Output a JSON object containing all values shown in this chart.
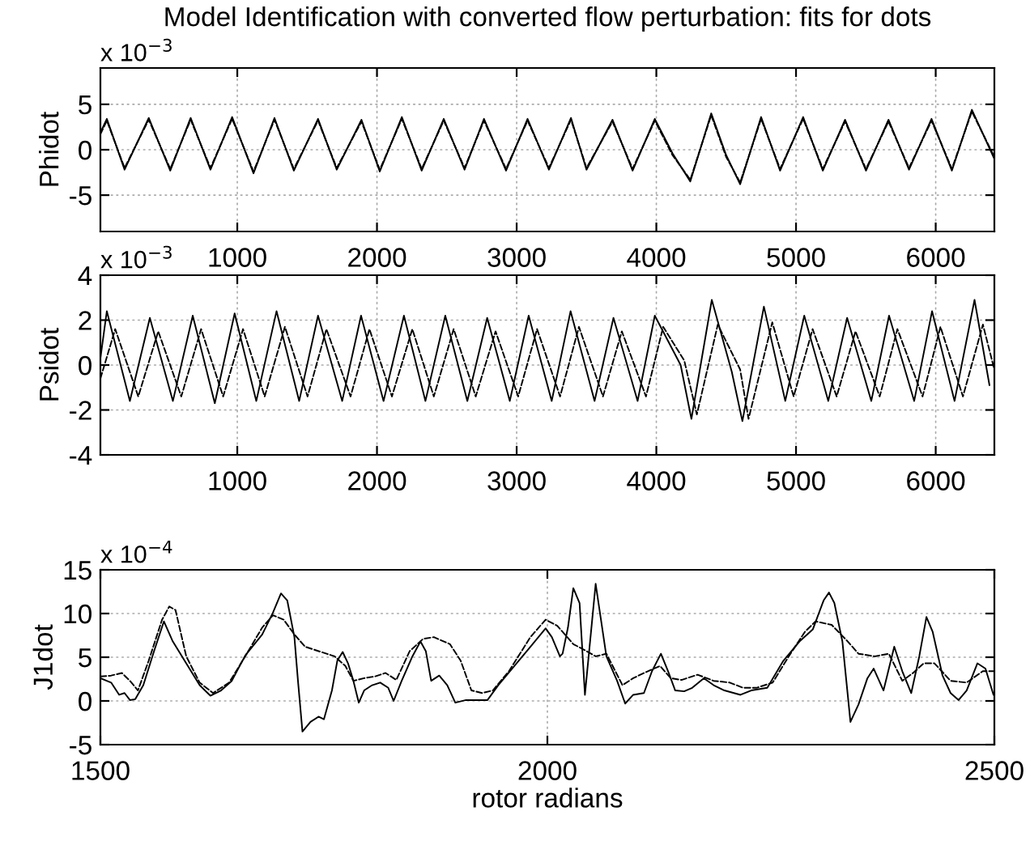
{
  "chart_data": [
    {
      "type": "line",
      "title": "Model Identification with converted flow perturbation: fits for dots",
      "ylabel": "Phidot",
      "annotations": [
        "x 10$^{−3}$"
      ],
      "xlim": [
        20,
        6420
      ],
      "xticks": [
        1000,
        2000,
        3000,
        4000,
        5000,
        6000
      ],
      "ylim": [
        -9,
        9
      ],
      "yticks": [
        -5,
        0,
        5
      ],
      "grid": true,
      "legend": false,
      "series": [
        {
          "color": "#000000",
          "line_style": "solid",
          "x": [
            20,
            66,
            193,
            366,
            520,
            666,
            808,
            963,
            1116,
            1266,
            1405,
            1578,
            1712,
            1889,
            2020,
            2178,
            2320,
            2478,
            2627,
            2766,
            2924,
            3078,
            3231,
            3389,
            3500,
            3686,
            3830,
            3989,
            4116,
            4243,
            4393,
            4500,
            4600,
            4750,
            4886,
            5051,
            5192,
            5351,
            5501,
            5662,
            5809,
            5970,
            6116,
            6259,
            6420
          ],
          "values": [
            1.9,
            3.4,
            -2.2,
            3.5,
            -2.3,
            3.5,
            -2.2,
            3.6,
            -2.6,
            3.5,
            -2.3,
            3.4,
            -2.2,
            3.3,
            -2.4,
            3.6,
            -2.3,
            3.4,
            -2.2,
            3.4,
            -2.3,
            3.4,
            -2.2,
            3.5,
            -2.2,
            3.3,
            -2.3,
            3.4,
            -0.4,
            -3.5,
            4.0,
            -0.6,
            -3.8,
            3.6,
            -2.3,
            3.6,
            -2.3,
            3.3,
            -2.3,
            3.3,
            -2.2,
            3.4,
            -2.3,
            4.4,
            -1.0
          ]
        },
        {
          "color": "#000000",
          "line_style": "dashed",
          "x": [
            20,
            66,
            193,
            366,
            520,
            666,
            808,
            963,
            1116,
            1266,
            1405,
            1578,
            1712,
            1889,
            2020,
            2178,
            2320,
            2478,
            2627,
            2766,
            2924,
            3078,
            3231,
            3389,
            3500,
            3686,
            3830,
            3989,
            4116,
            4243,
            4393,
            4500,
            4600,
            4750,
            4886,
            5051,
            5192,
            5351,
            5501,
            5662,
            5809,
            5970,
            6116,
            6259,
            6420
          ],
          "values": [
            1.7,
            3.2,
            -2.0,
            3.3,
            -2.1,
            3.3,
            -2.0,
            3.4,
            -2.4,
            3.3,
            -2.1,
            3.2,
            -2.0,
            3.1,
            -2.2,
            3.4,
            -2.1,
            3.2,
            -2.0,
            3.2,
            -2.1,
            3.2,
            -2.0,
            3.3,
            -2.0,
            3.1,
            -2.1,
            3.2,
            -0.6,
            -3.3,
            3.8,
            -0.8,
            -3.6,
            3.4,
            -2.1,
            3.4,
            -2.1,
            3.1,
            -2.1,
            3.1,
            -2.0,
            3.2,
            -2.1,
            4.2,
            -0.8
          ]
        }
      ]
    },
    {
      "type": "line",
      "ylabel": "Psidot",
      "annotations": [
        "x 10$^{−3}$"
      ],
      "xlim": [
        20,
        6420
      ],
      "xticks": [
        1000,
        2000,
        3000,
        4000,
        5000,
        6000
      ],
      "ylim": [
        -4,
        4
      ],
      "yticks": [
        -4,
        -2,
        0,
        2,
        4
      ],
      "grid": true,
      "legend": false,
      "series": [
        {
          "color": "#000000",
          "line_style": "solid",
          "x": [
            20,
            66,
            231,
            374,
            539,
            681,
            839,
            981,
            1136,
            1281,
            1443,
            1578,
            1751,
            1886,
            2047,
            2193,
            2347,
            2489,
            2647,
            2789,
            2951,
            3086,
            3251,
            3386,
            3558,
            3693,
            3866,
            3989,
            4174,
            4251,
            4397,
            4540,
            4616,
            4770,
            4923,
            5059,
            5231,
            5366,
            5539,
            5666,
            5846,
            5974,
            6135,
            6278,
            6385
          ],
          "values": [
            0.3,
            2.4,
            -1.6,
            2.1,
            -1.6,
            2.2,
            -1.7,
            2.3,
            -1.6,
            2.4,
            -1.6,
            2.2,
            -1.6,
            2.2,
            -1.6,
            2.2,
            -1.6,
            2.2,
            -1.6,
            2.1,
            -1.6,
            2.2,
            -1.6,
            2.4,
            -1.6,
            2.1,
            -1.6,
            2.2,
            0.0,
            -2.4,
            2.9,
            -0.3,
            -2.5,
            2.6,
            -1.6,
            2.2,
            -1.6,
            2.1,
            -1.6,
            2.2,
            -1.6,
            2.4,
            -1.6,
            2.9,
            -0.9
          ]
        },
        {
          "color": "#000000",
          "line_style": "dashed",
          "x": [
            20,
            126,
            291,
            434,
            599,
            741,
            899,
            1041,
            1196,
            1341,
            1503,
            1638,
            1811,
            1946,
            2107,
            2253,
            2407,
            2549,
            2707,
            2849,
            3011,
            3146,
            3311,
            3446,
            3618,
            3753,
            3926,
            4049,
            4200,
            4290,
            4440,
            4600,
            4660,
            4830,
            4983,
            5119,
            5291,
            5426,
            5599,
            5726,
            5906,
            6034,
            6195,
            6338,
            6420
          ],
          "values": [
            -0.6,
            1.6,
            -1.4,
            1.5,
            -1.4,
            1.6,
            -1.4,
            1.6,
            -1.4,
            1.7,
            -1.4,
            1.6,
            -1.4,
            1.6,
            -1.4,
            1.6,
            -1.4,
            1.6,
            -1.4,
            1.5,
            -1.4,
            1.6,
            -1.4,
            1.7,
            -1.4,
            1.5,
            -1.4,
            1.7,
            0.2,
            -2.2,
            1.8,
            -0.2,
            -2.4,
            1.9,
            -1.4,
            1.6,
            -1.4,
            1.5,
            -1.4,
            1.6,
            -1.4,
            1.7,
            -1.4,
            1.8,
            -0.2
          ]
        }
      ]
    },
    {
      "type": "line",
      "ylabel": "J1dot",
      "xlabel": "rotor radians",
      "annotations": [
        "x 10$^{−4}$"
      ],
      "xlim": [
        1500,
        2500
      ],
      "xticks": [
        1500,
        2000,
        2500
      ],
      "ylim": [
        -5,
        15
      ],
      "yticks": [
        -5,
        0,
        5,
        10,
        15
      ],
      "grid": true,
      "legend": false,
      "series": [
        {
          "color": "#000000",
          "line_style": "solid",
          "x": [
            1500,
            1512,
            1521,
            1527,
            1533,
            1539,
            1548,
            1560,
            1571,
            1581,
            1596,
            1611,
            1623,
            1635,
            1647,
            1662,
            1681,
            1693,
            1702,
            1709,
            1717,
            1721,
            1726,
            1735,
            1744,
            1750,
            1759,
            1765,
            1771,
            1777,
            1783,
            1789,
            1795,
            1804,
            1813,
            1822,
            1828,
            1837,
            1849,
            1858,
            1864,
            1870,
            1879,
            1888,
            1897,
            1909,
            1921,
            1933,
            1945,
            1963,
            1981,
            1998,
            2005,
            2014,
            2017,
            2023,
            2029,
            2036,
            2042,
            2054,
            2066,
            2078,
            2087,
            2096,
            2108,
            2117,
            2127,
            2135,
            2143,
            2153,
            2162,
            2175,
            2186,
            2198,
            2216,
            2228,
            2246,
            2264,
            2282,
            2297,
            2309,
            2315,
            2321,
            2330,
            2339,
            2348,
            2358,
            2365,
            2376,
            2388,
            2397,
            2407,
            2416,
            2424,
            2431,
            2442,
            2451,
            2460,
            2469,
            2481,
            2490,
            2499
          ],
          "values": [
            2.6,
            2.1,
            0.7,
            0.9,
            0.1,
            0.2,
            1.8,
            5.7,
            9.1,
            6.8,
            4.3,
            1.8,
            0.6,
            1.2,
            2.3,
            5.2,
            7.6,
            10.1,
            12.3,
            11.5,
            7.3,
            2.3,
            -3.5,
            -2.4,
            -1.8,
            -2.1,
            1.2,
            4.6,
            5.6,
            4.3,
            2.3,
            -0.2,
            1.2,
            1.8,
            2.1,
            1.5,
            0,
            2.3,
            5.1,
            6.8,
            5.7,
            2.3,
            2.9,
            1.8,
            -0.2,
            0.1,
            0.1,
            0.1,
            1.8,
            4.0,
            6.2,
            8.3,
            7.3,
            5.1,
            5.4,
            8.4,
            12.9,
            11.2,
            0.7,
            13.4,
            5.1,
            2.3,
            -0.3,
            0.7,
            0.9,
            3.4,
            5.4,
            3.4,
            1.2,
            1.1,
            1.5,
            2.6,
            1.8,
            1.2,
            0.7,
            1.2,
            1.5,
            4.6,
            6.8,
            8.2,
            11.5,
            12.4,
            11.2,
            6.8,
            -2.4,
            -0.4,
            2.6,
            3.7,
            1.2,
            6.2,
            3.4,
            0.9,
            5.1,
            9.6,
            7.9,
            2.9,
            0.9,
            0.1,
            1.2,
            4.3,
            3.7,
            0.7
          ]
        },
        {
          "color": "#000000",
          "line_style": "dashed",
          "x": [
            1500,
            1512,
            1524,
            1533,
            1542,
            1554,
            1569,
            1577,
            1584,
            1596,
            1611,
            1626,
            1644,
            1662,
            1681,
            1693,
            1705,
            1717,
            1729,
            1747,
            1762,
            1774,
            1783,
            1795,
            1807,
            1819,
            1831,
            1846,
            1861,
            1873,
            1891,
            1903,
            1915,
            1927,
            1939,
            1957,
            1981,
            1998,
            2011,
            2029,
            2042,
            2054,
            2066,
            2084,
            2096,
            2108,
            2126,
            2138,
            2150,
            2168,
            2186,
            2204,
            2219,
            2234,
            2252,
            2270,
            2288,
            2300,
            2318,
            2336,
            2348,
            2366,
            2382,
            2397,
            2409,
            2421,
            2433,
            2451,
            2469,
            2487,
            2499
          ],
          "values": [
            2.8,
            2.9,
            3.2,
            2.3,
            1.2,
            4.6,
            9.3,
            10.8,
            10.4,
            5.1,
            2.1,
            0.9,
            2.1,
            5.1,
            8.4,
            9.8,
            9.3,
            7.6,
            6.2,
            5.6,
            5.1,
            4.0,
            2.3,
            2.6,
            2.8,
            3.2,
            2.4,
            5.7,
            7.1,
            7.3,
            6.5,
            4.6,
            1.2,
            0.9,
            1.2,
            3.4,
            7.3,
            9.3,
            8.6,
            6.5,
            5.8,
            5.1,
            5.4,
            1.8,
            2.6,
            3.2,
            4.0,
            2.6,
            2.4,
            3.0,
            2.3,
            2.1,
            1.5,
            1.5,
            2.1,
            5.1,
            7.9,
            9.1,
            8.7,
            6.8,
            5.4,
            5.1,
            5.4,
            2.3,
            3.2,
            4.3,
            4.3,
            2.3,
            2.1,
            3.4,
            3.4
          ]
        }
      ]
    }
  ]
}
